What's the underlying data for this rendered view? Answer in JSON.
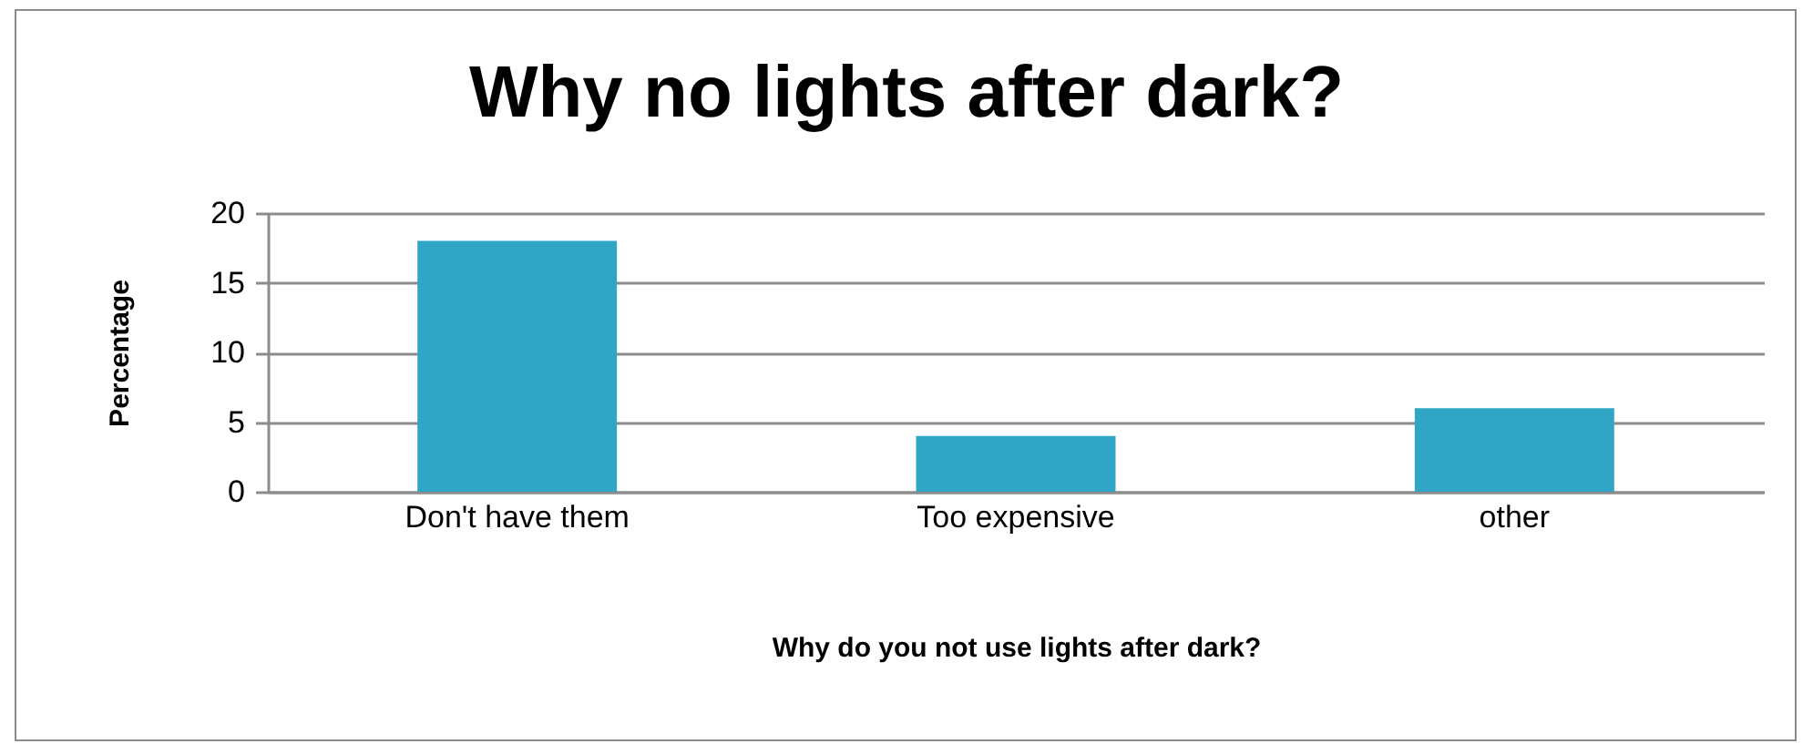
{
  "chart_data": {
    "type": "bar",
    "title": "Why no lights after dark?",
    "xlabel": "Why do you not use lights after dark?",
    "ylabel": "Percentage",
    "categories": [
      "Don't have them",
      "Too expensive",
      "other"
    ],
    "values": [
      18,
      4,
      6
    ],
    "color": "#31a5c6",
    "ylim": [
      0,
      20
    ],
    "yticks": [
      0,
      5,
      10,
      15,
      20
    ],
    "grid": "y"
  }
}
